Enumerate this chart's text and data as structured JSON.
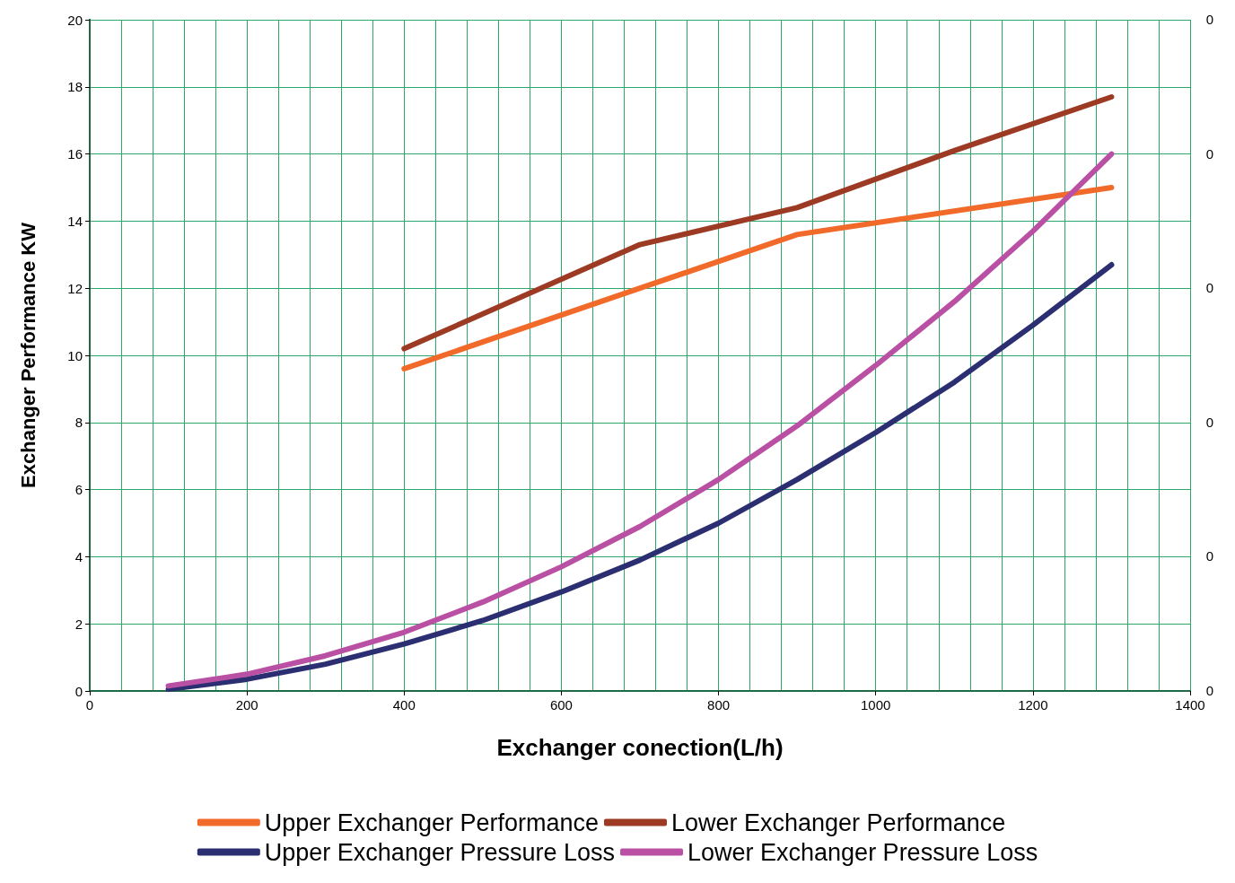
{
  "chart_data": {
    "type": "line",
    "xlabel": "Exchanger conection(L/h)",
    "ylabel": "Exchanger Performance KW",
    "xlim": [
      0,
      1400
    ],
    "xticks": [
      0,
      200,
      400,
      600,
      800,
      1000,
      1200,
      1400
    ],
    "ylim": [
      0,
      20
    ],
    "yticks": [
      0,
      2,
      4,
      6,
      8,
      10,
      12,
      14,
      16,
      18,
      20
    ],
    "annotations": [
      "0",
      "0",
      "0",
      "0",
      "0",
      "0"
    ],
    "grid": true,
    "legend": "bottom",
    "marker": "none",
    "line_style": "solid",
    "series": [
      {
        "name": "Upper Exchanger Performance",
        "color": "#f26a2a",
        "x": [
          400,
          700,
          900,
          1300
        ],
        "values": [
          9.6,
          12.0,
          13.6,
          15.0
        ]
      },
      {
        "name": "Lower Exchanger Performance",
        "color": "#9c3a24",
        "x": [
          400,
          700,
          900,
          1100,
          1300
        ],
        "values": [
          10.2,
          13.3,
          14.4,
          16.1,
          17.7
        ]
      },
      {
        "name": "Upper Exchanger Pressure Loss",
        "color": "#2b2f72",
        "x": [
          100,
          200,
          300,
          400,
          500,
          600,
          700,
          800,
          900,
          1000,
          1100,
          1200,
          1300
        ],
        "values": [
          0.05,
          0.35,
          0.8,
          1.4,
          2.1,
          2.95,
          3.9,
          5.0,
          6.3,
          7.7,
          9.2,
          10.9,
          12.7
        ]
      },
      {
        "name": "Lower Exchanger Pressure Loss",
        "color": "#b950a3",
        "x": [
          100,
          200,
          300,
          400,
          500,
          600,
          700,
          800,
          900,
          1000,
          1100,
          1200,
          1300
        ],
        "values": [
          0.15,
          0.5,
          1.05,
          1.75,
          2.65,
          3.7,
          4.9,
          6.3,
          7.9,
          9.7,
          11.6,
          13.7,
          16.0
        ]
      }
    ]
  }
}
